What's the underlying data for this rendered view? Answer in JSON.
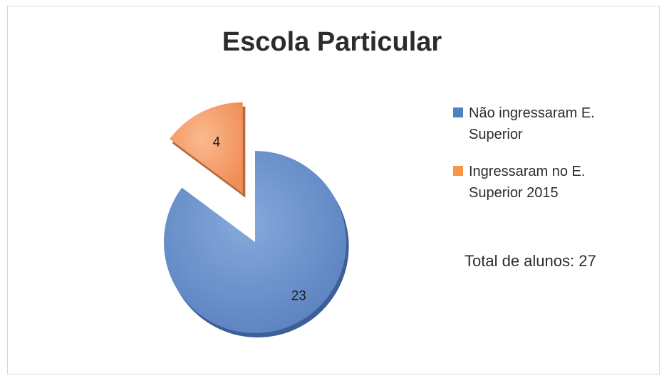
{
  "chart_data": {
    "type": "pie",
    "title": "Escola Particular",
    "slices": [
      {
        "label": "Não ingressaram E. Superior",
        "value": 23,
        "color": "#4f81bd"
      },
      {
        "label": "Ingressaram no E. Superior 2015",
        "value": 4,
        "color": "#f79646"
      }
    ],
    "legend_position": "right",
    "exploded": true
  },
  "annotation": "Total de alunos: 27"
}
